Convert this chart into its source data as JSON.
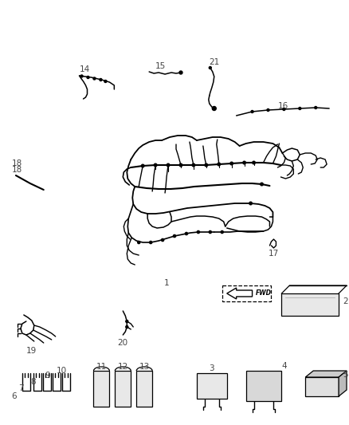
{
  "background_color": "#ffffff",
  "figsize": [
    4.38,
    5.33
  ],
  "dpi": 100,
  "label_color": "#444444",
  "label_fs": 7.5
}
